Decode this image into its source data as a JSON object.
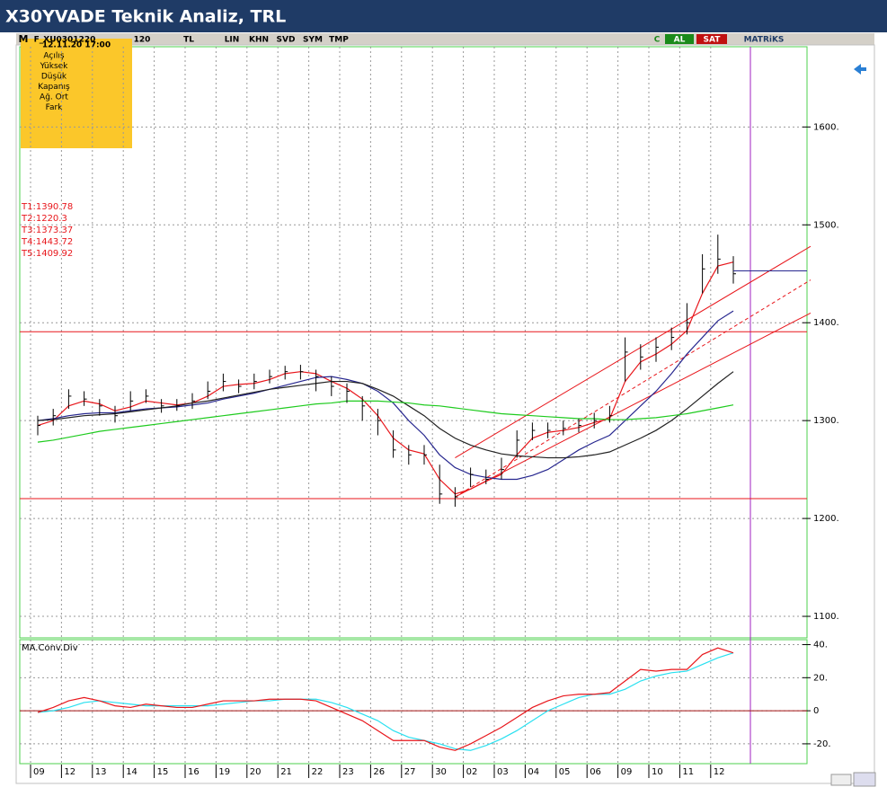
{
  "header": {
    "title": "X30YVADE Teknik Analiz, TRL"
  },
  "toolbar": {
    "items": [
      "M",
      "F_XU0301220",
      "120",
      "TL",
      "LIN",
      "KHN",
      "SVD",
      "SYM",
      "TMP",
      "C",
      "AL",
      "SAT",
      "MATRiKS"
    ]
  },
  "info_box": {
    "datetime": "12.11.20 17:00",
    "fields": [
      "Açılış",
      "Yüksek",
      "Düşük",
      "Kapanış",
      "Ağ. Ort",
      "Fark"
    ]
  },
  "chart_data": [
    {
      "type": "ohlc",
      "categories": [
        "09",
        null,
        "12",
        null,
        "13",
        null,
        "14",
        null,
        "15",
        null,
        "16",
        null,
        "19",
        null,
        "20",
        null,
        "21",
        null,
        "22",
        null,
        "23",
        null,
        "26",
        null,
        "27",
        null,
        "30",
        null,
        "02",
        null,
        "03",
        null,
        "04",
        null,
        "05",
        null,
        "06",
        null,
        "09",
        null,
        "10",
        null,
        "11",
        null,
        "12",
        null
      ],
      "high": [
        1305,
        1312,
        1332,
        1330,
        1322,
        1315,
        1330,
        1332,
        1322,
        1322,
        1328,
        1340,
        1348,
        1342,
        1348,
        1352,
        1356,
        1357,
        1352,
        1345,
        1338,
        1325,
        1312,
        1290,
        1275,
        1275,
        1255,
        1232,
        1252,
        1250,
        1262,
        1290,
        1298,
        1298,
        1300,
        1302,
        1308,
        1315,
        1385,
        1378,
        1385,
        1395,
        1420,
        1470,
        1490,
        1468
      ],
      "low": [
        1285,
        1295,
        1312,
        1315,
        1305,
        1298,
        1310,
        1318,
        1308,
        1310,
        1312,
        1322,
        1330,
        1328,
        1332,
        1338,
        1342,
        1342,
        1330,
        1325,
        1318,
        1300,
        1285,
        1262,
        1255,
        1255,
        1215,
        1212,
        1232,
        1235,
        1240,
        1262,
        1280,
        1282,
        1285,
        1288,
        1292,
        1298,
        1340,
        1352,
        1360,
        1372,
        1388,
        1430,
        1450,
        1440
      ],
      "close": [
        1295,
        1305,
        1325,
        1322,
        1315,
        1305,
        1320,
        1325,
        1315,
        1315,
        1320,
        1330,
        1340,
        1335,
        1340,
        1345,
        1350,
        1350,
        1345,
        1335,
        1330,
        1315,
        1300,
        1270,
        1265,
        1265,
        1225,
        1222,
        1245,
        1240,
        1250,
        1280,
        1290,
        1290,
        1292,
        1295,
        1300,
        1305,
        1370,
        1365,
        1375,
        1385,
        1400,
        1455,
        1465,
        1450
      ],
      "bar_color": "#000000",
      "series": [
        {
          "color": "#e8161b",
          "values": [
            1295,
            1300,
            1315,
            1320,
            1317,
            1310,
            1314,
            1320,
            1318,
            1316,
            1318,
            1325,
            1335,
            1337,
            1338,
            1342,
            1348,
            1350,
            1348,
            1340,
            1333,
            1322,
            1305,
            1282,
            1270,
            1266,
            1240,
            1225,
            1230,
            1238,
            1245,
            1265,
            1282,
            1288,
            1290,
            1293,
            1298,
            1302,
            1340,
            1360,
            1368,
            1378,
            1392,
            1430,
            1458,
            1462
          ]
        },
        {
          "color": "#27278f",
          "values": [
            1300,
            1302,
            1305,
            1307,
            1308,
            1308,
            1310,
            1312,
            1313,
            1314,
            1316,
            1318,
            1322,
            1325,
            1328,
            1332,
            1336,
            1340,
            1344,
            1345,
            1342,
            1338,
            1330,
            1318,
            1300,
            1285,
            1265,
            1252,
            1245,
            1242,
            1240,
            1240,
            1244,
            1250,
            1260,
            1270,
            1278,
            1285,
            1300,
            1315,
            1330,
            1348,
            1368,
            1385,
            1402,
            1412
          ]
        },
        {
          "color": "#222222",
          "values": [
            1300,
            1301,
            1303,
            1305,
            1306,
            1307,
            1309,
            1311,
            1313,
            1315,
            1318,
            1320,
            1323,
            1326,
            1329,
            1332,
            1334,
            1336,
            1338,
            1340,
            1340,
            1338,
            1332,
            1325,
            1315,
            1305,
            1292,
            1282,
            1275,
            1270,
            1266,
            1264,
            1263,
            1262,
            1262,
            1263,
            1265,
            1268,
            1275,
            1282,
            1290,
            1300,
            1312,
            1325,
            1338,
            1350
          ]
        },
        {
          "color": "#1ecb1e",
          "values": [
            1278,
            1280,
            1283,
            1286,
            1289,
            1291,
            1293,
            1295,
            1297,
            1299,
            1301,
            1303,
            1305,
            1307,
            1309,
            1311,
            1313,
            1315,
            1317,
            1318,
            1320,
            1320,
            1320,
            1319,
            1318,
            1316,
            1315,
            1313,
            1311,
            1309,
            1307,
            1306,
            1305,
            1304,
            1303,
            1302,
            1302,
            1301,
            1301,
            1302,
            1303,
            1305,
            1307,
            1310,
            1313,
            1316
          ]
        }
      ],
      "levels": [
        {
          "label": "T1:1390.78",
          "value": 1390.78,
          "line": true
        },
        {
          "label": "T2:1220.3",
          "value": 1220.3,
          "line": true
        },
        {
          "label": "T3:1373.37",
          "value": 1373.37
        },
        {
          "label": "T4:1443.72",
          "value": 1443.72
        },
        {
          "label": "T5:1409.92",
          "value": 1409.92
        }
      ],
      "level_color": "#e8161b",
      "channel": {
        "from": 27,
        "to": 50,
        "upper": [
          1262,
          1478
        ],
        "middle": [
          1222,
          1443.72
        ],
        "lower": [
          1222,
          1409.92
        ],
        "color": "#e8161b"
      },
      "last_line": {
        "value": 1453,
        "color": "#27278f"
      },
      "ylim": [
        1078,
        1682
      ],
      "yticks": [
        {
          "value": 1100,
          "label": "1100."
        },
        {
          "value": 1200,
          "label": "1200."
        },
        {
          "value": 1300,
          "label": "1300."
        },
        {
          "value": 1400,
          "label": "1400."
        },
        {
          "value": 1500,
          "label": "1500."
        },
        {
          "value": 1600,
          "label": "1600."
        }
      ],
      "grid": true
    },
    {
      "type": "line",
      "title": "MA.Conv.Div",
      "series": [
        {
          "color": "#e8161b",
          "values": [
            -1,
            2,
            6,
            8,
            6,
            3,
            2,
            4,
            3,
            2,
            2,
            4,
            6,
            6,
            6,
            7,
            7,
            7,
            6,
            2,
            -2,
            -6,
            -12,
            -18,
            -18,
            -18,
            -22,
            -24,
            -20,
            -15,
            -10,
            -4,
            2,
            6,
            9,
            10,
            10,
            11,
            18,
            25,
            24,
            25,
            25,
            34,
            38,
            35
          ]
        },
        {
          "color": "#29e0f0",
          "values": [
            -1,
            0,
            2,
            5,
            6,
            5,
            4,
            3,
            3,
            3,
            3,
            3,
            4,
            5,
            6,
            6,
            7,
            7,
            7,
            5,
            2,
            -2,
            -6,
            -12,
            -16,
            -18,
            -20,
            -23,
            -24,
            -21,
            -17,
            -12,
            -6,
            0,
            4,
            8,
            10,
            10,
            13,
            18,
            21,
            23,
            24,
            28,
            32,
            35
          ]
        }
      ],
      "zero_line_color": "#a01010",
      "ylim": [
        -32,
        43
      ],
      "yticks": [
        {
          "value": -20,
          "label": "-20."
        },
        0,
        {
          "value": 20,
          "label": "20."
        },
        {
          "value": 40,
          "label": "40."
        }
      ],
      "grid": true
    }
  ]
}
